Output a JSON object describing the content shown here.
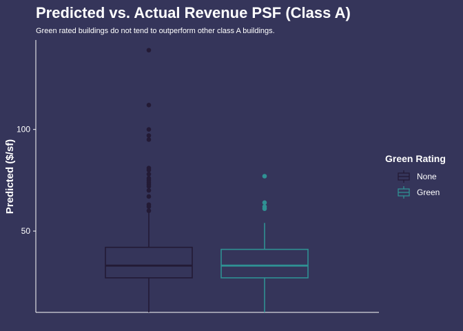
{
  "chart_data": {
    "type": "boxplot",
    "title": "Predicted vs. Actual Revenue PSF (Class A)",
    "subtitle": "Green rated buildings do not tend to outperform other class A buildings.",
    "xlabel": "",
    "ylabel": "Predicted ($/sf)",
    "ylim": [
      10,
      144
    ],
    "yticks": [
      50,
      100
    ],
    "grid": false,
    "legend": {
      "title": "Green Rating",
      "position": "right",
      "entries": [
        "None",
        "Green"
      ]
    },
    "series": [
      {
        "name": "None",
        "color": "#231a35",
        "whisker_low": 10,
        "q1": 27,
        "median": 33,
        "q3": 42,
        "whisker_high": 59,
        "outliers": [
          60,
          62,
          63,
          67,
          70,
          72,
          73,
          74,
          75,
          76,
          78,
          80,
          81,
          95,
          97,
          100,
          112,
          139
        ]
      },
      {
        "name": "Green",
        "color": "#2f9193",
        "whisker_low": 10,
        "q1": 27,
        "median": 33,
        "q3": 41,
        "whisker_high": 54,
        "outliers": [
          61,
          62,
          64,
          77
        ]
      }
    ]
  }
}
